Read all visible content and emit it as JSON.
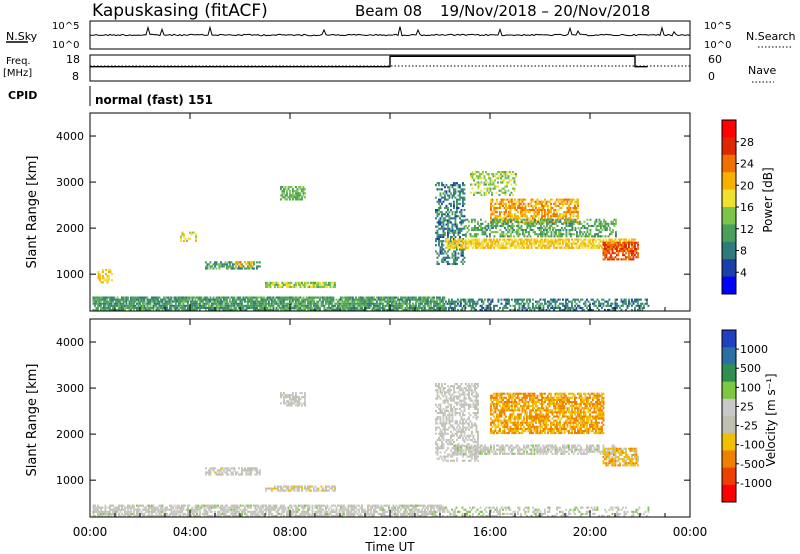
{
  "header": {
    "station": "Kapuskasing (fitACF)",
    "beam": "Beam 08",
    "dates": "19/Nov/2018 – 20/Nov/2018"
  },
  "noise_panel": {
    "left_label": "N.Sky",
    "right_label": "N.Search",
    "left_ticks": [
      "10^5",
      "10^0"
    ],
    "right_ticks": [
      "10^5",
      "10^0"
    ]
  },
  "freq_panel": {
    "left_label_1": "Freq.",
    "left_label_2": "[MHz]",
    "right_label": "Nave",
    "left_ticks": [
      "18",
      "8"
    ],
    "right_ticks": [
      "60",
      "0"
    ],
    "nave_steps": [
      {
        "t": 0,
        "v": 0.55
      },
      {
        "t": 12,
        "v": 0.55
      },
      {
        "t": 12,
        "v": 0.95
      },
      {
        "t": 21.8,
        "v": 0.95
      },
      {
        "t": 21.8,
        "v": 0.55
      },
      {
        "t": 22.3,
        "v": 0.55
      }
    ]
  },
  "cpid": {
    "label": "CPID",
    "mode": "normal (fast) 151"
  },
  "x_axis": {
    "label": "Time UT",
    "ticks": [
      "00:00",
      "04:00",
      "08:00",
      "12:00",
      "16:00",
      "20:00",
      "00:00"
    ],
    "range_hours": [
      0,
      24
    ]
  },
  "power_panel": {
    "ylabel": "Slant Range [km]",
    "yticks": [
      "1000",
      "2000",
      "3000",
      "4000"
    ],
    "colorbar_label": "Power [dB]",
    "colorbar_ticks": [
      "4",
      "8",
      "12",
      "16",
      "20",
      "24",
      "28"
    ],
    "colors": [
      "#0000ff",
      "#1a3fa8",
      "#2f7a7a",
      "#4aa05a",
      "#7cc44a",
      "#f0e030",
      "#f8b000",
      "#f07000",
      "#e02800",
      "#ff0000"
    ]
  },
  "velocity_panel": {
    "ylabel": "Slant Range [km]",
    "yticks": [
      "1000",
      "2000",
      "3000",
      "4000"
    ],
    "colorbar_label": "Velocity [m s⁻¹]",
    "colorbar_ticks": [
      "1000",
      "500",
      "100",
      "25",
      "-25",
      "-100",
      "-500",
      "-1000"
    ],
    "colors": [
      "#2040c0",
      "#2a70a0",
      "#2e9050",
      "#7cc840",
      "#c8c8c8",
      "#c0c0b0",
      "#f0c000",
      "#f08000",
      "#f04000",
      "#ff0000"
    ]
  },
  "chart_data": [
    {
      "type": "heatmap",
      "title": "Power",
      "xlabel": "Time UT",
      "ylabel": "Slant Range [km]",
      "xlim": [
        0,
        24
      ],
      "ylim": [
        200,
        4500
      ],
      "value_range": [
        0,
        30
      ],
      "colorbar": "Power [dB]",
      "regions": [
        {
          "t0": 0.1,
          "t1": 14.2,
          "r0": 200,
          "r1": 500,
          "value": 10,
          "density": 0.85
        },
        {
          "t0": 14.2,
          "t1": 22.3,
          "r0": 200,
          "r1": 450,
          "value": 8,
          "density": 0.5
        },
        {
          "t0": 0.3,
          "t1": 0.9,
          "r0": 800,
          "r1": 1100,
          "value": 18,
          "density": 0.5
        },
        {
          "t0": 4.6,
          "t1": 6.8,
          "r0": 1100,
          "r1": 1250,
          "value": 10,
          "density": 0.6
        },
        {
          "t0": 3.6,
          "t1": 4.2,
          "r0": 1700,
          "r1": 1900,
          "value": 16,
          "density": 0.4
        },
        {
          "t0": 7.0,
          "t1": 9.8,
          "r0": 700,
          "r1": 800,
          "value": 14,
          "density": 0.7
        },
        {
          "t0": 7.6,
          "t1": 8.6,
          "r0": 2600,
          "r1": 2900,
          "value": 12,
          "density": 0.6
        },
        {
          "t0": 5.8,
          "t1": 6.5,
          "r0": 1150,
          "r1": 1250,
          "value": 20,
          "density": 0.5
        },
        {
          "t0": 13.8,
          "t1": 15.0,
          "r0": 1200,
          "r1": 3000,
          "value": 8,
          "density": 0.45
        },
        {
          "t0": 14.2,
          "t1": 21.8,
          "r0": 1550,
          "r1": 1750,
          "value": 18,
          "density": 0.75
        },
        {
          "t0": 16.0,
          "t1": 19.5,
          "r0": 2100,
          "r1": 2600,
          "value": 20,
          "density": 0.6
        },
        {
          "t0": 15.0,
          "t1": 21.0,
          "r0": 1800,
          "r1": 2200,
          "value": 11,
          "density": 0.5
        },
        {
          "t0": 20.5,
          "t1": 21.9,
          "r0": 1300,
          "r1": 1700,
          "value": 24,
          "density": 0.7
        },
        {
          "t0": 15.2,
          "t1": 17.0,
          "r0": 2700,
          "r1": 3200,
          "value": 14,
          "density": 0.4
        }
      ]
    },
    {
      "type": "heatmap",
      "title": "Velocity",
      "xlabel": "Time UT",
      "ylabel": "Slant Range [km]",
      "xlim": [
        0,
        24
      ],
      "ylim": [
        200,
        4500
      ],
      "value_range": [
        -1000,
        1000
      ],
      "colorbar": "Velocity [m s⁻¹]",
      "regions": [
        {
          "t0": 0.1,
          "t1": 14.2,
          "r0": 200,
          "r1": 450,
          "value": 20,
          "density": 0.7
        },
        {
          "t0": 14.2,
          "t1": 22.3,
          "r0": 200,
          "r1": 400,
          "value": 80,
          "density": 0.35
        },
        {
          "t0": 4.6,
          "t1": 6.8,
          "r0": 1100,
          "r1": 1250,
          "value": -20,
          "density": 0.6
        },
        {
          "t0": 7.0,
          "t1": 9.8,
          "r0": 750,
          "r1": 850,
          "value": -90,
          "density": 0.6
        },
        {
          "t0": 7.6,
          "t1": 8.6,
          "r0": 2600,
          "r1": 2900,
          "value": 0,
          "density": 0.6
        },
        {
          "t0": 13.8,
          "t1": 15.5,
          "r0": 1400,
          "r1": 3100,
          "value": 0,
          "density": 0.45
        },
        {
          "t0": 14.5,
          "t1": 21.0,
          "r0": 1550,
          "r1": 1750,
          "value": 60,
          "density": 0.6
        },
        {
          "t0": 16.0,
          "t1": 20.5,
          "r0": 2000,
          "r1": 2900,
          "value": -400,
          "density": 0.7
        },
        {
          "t0": 20.5,
          "t1": 21.9,
          "r0": 1300,
          "r1": 1700,
          "value": -300,
          "density": 0.7
        }
      ]
    }
  ]
}
